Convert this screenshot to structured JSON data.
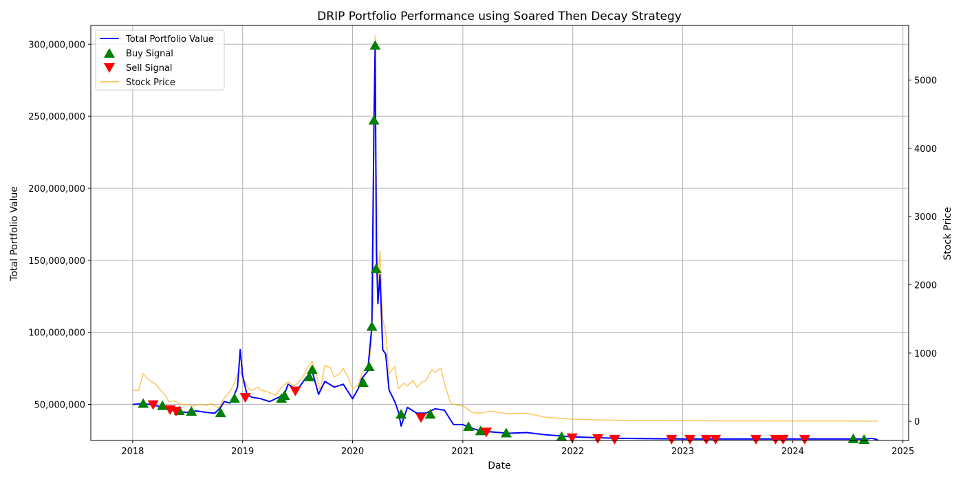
{
  "chart_data": {
    "type": "line",
    "title": "DRIP Portfolio Performance using Soared Then Decay Strategy",
    "xlabel": "Date",
    "ylabel": "Total Portfolio Value",
    "y2label": "Stock Price",
    "xlim": [
      "2017-08-15",
      "2025-01-20"
    ],
    "ylim": [
      25000000,
      313000000
    ],
    "y2lim": [
      -280,
      5800
    ],
    "x_ticks": [
      {
        "date": "2018-01-01",
        "label": "2018"
      },
      {
        "date": "2019-01-01",
        "label": "2019"
      },
      {
        "date": "2020-01-01",
        "label": "2020"
      },
      {
        "date": "2021-01-01",
        "label": "2021"
      },
      {
        "date": "2022-01-01",
        "label": "2022"
      },
      {
        "date": "2023-01-01",
        "label": "2023"
      },
      {
        "date": "2024-01-01",
        "label": "2024"
      },
      {
        "date": "2025-01-01",
        "label": "2025"
      }
    ],
    "y_ticks": [
      {
        "value": 50000000,
        "label": "50,000,000"
      },
      {
        "value": 100000000,
        "label": "100,000,000"
      },
      {
        "value": 150000000,
        "label": "150,000,000"
      },
      {
        "value": 200000000,
        "label": "200,000,000"
      },
      {
        "value": 250000000,
        "label": "250,000,000"
      },
      {
        "value": 300000000,
        "label": "300,000,000"
      }
    ],
    "y2_ticks": [
      {
        "value": 0,
        "label": "0"
      },
      {
        "value": 1000,
        "label": "1000"
      },
      {
        "value": 2000,
        "label": "2000"
      },
      {
        "value": 3000,
        "label": "3000"
      },
      {
        "value": 4000,
        "label": "4000"
      },
      {
        "value": 5000,
        "label": "5000"
      }
    ],
    "grid": true,
    "legend_position": "top-left",
    "series": [
      {
        "name": "Total Portfolio Value",
        "axis": "left",
        "color": "#0000ff",
        "points": [
          [
            "2018-01-01",
            50000000
          ],
          [
            "2018-02-01",
            50500000
          ],
          [
            "2018-03-01",
            50000000
          ],
          [
            "2018-04-01",
            48500000
          ],
          [
            "2018-05-01",
            46500000
          ],
          [
            "2018-06-01",
            45000000
          ],
          [
            "2018-07-01",
            44500000
          ],
          [
            "2018-08-01",
            45500000
          ],
          [
            "2018-09-01",
            44500000
          ],
          [
            "2018-10-01",
            44000000
          ],
          [
            "2018-10-20",
            48000000
          ],
          [
            "2018-11-01",
            52000000
          ],
          [
            "2018-11-20",
            51000000
          ],
          [
            "2018-12-01",
            55000000
          ],
          [
            "2018-12-15",
            62000000
          ],
          [
            "2018-12-24",
            88000000
          ],
          [
            "2019-01-01",
            70000000
          ],
          [
            "2019-01-15",
            57000000
          ],
          [
            "2019-02-01",
            55000000
          ],
          [
            "2019-03-01",
            54000000
          ],
          [
            "2019-04-01",
            52000000
          ],
          [
            "2019-05-01",
            55000000
          ],
          [
            "2019-05-20",
            57000000
          ],
          [
            "2019-06-01",
            64000000
          ],
          [
            "2019-07-01",
            60000000
          ],
          [
            "2019-08-01",
            69000000
          ],
          [
            "2019-08-20",
            73000000
          ],
          [
            "2019-09-10",
            57000000
          ],
          [
            "2019-10-01",
            66000000
          ],
          [
            "2019-11-01",
            62000000
          ],
          [
            "2019-12-01",
            64000000
          ],
          [
            "2020-01-01",
            54000000
          ],
          [
            "2020-01-20",
            61000000
          ],
          [
            "2020-02-01",
            68000000
          ],
          [
            "2020-02-20",
            73000000
          ],
          [
            "2020-03-05",
            104000000
          ],
          [
            "2020-03-12",
            247000000
          ],
          [
            "2020-03-16",
            299000000
          ],
          [
            "2020-03-20",
            157000000
          ],
          [
            "2020-03-25",
            120000000
          ],
          [
            "2020-04-01",
            140000000
          ],
          [
            "2020-04-10",
            88000000
          ],
          [
            "2020-04-20",
            85000000
          ],
          [
            "2020-05-01",
            60000000
          ],
          [
            "2020-05-20",
            52000000
          ],
          [
            "2020-06-01",
            45000000
          ],
          [
            "2020-06-10",
            35000000
          ],
          [
            "2020-07-01",
            48000000
          ],
          [
            "2020-08-01",
            44000000
          ],
          [
            "2020-09-01",
            44000000
          ],
          [
            "2020-10-01",
            47000000
          ],
          [
            "2020-11-01",
            46000000
          ],
          [
            "2020-12-01",
            36000000
          ],
          [
            "2021-01-01",
            36000000
          ],
          [
            "2021-02-01",
            33500000
          ],
          [
            "2021-03-01",
            31500000
          ],
          [
            "2021-04-01",
            31000000
          ],
          [
            "2021-06-01",
            30000000
          ],
          [
            "2021-08-01",
            30500000
          ],
          [
            "2021-10-01",
            29000000
          ],
          [
            "2021-12-01",
            28000000
          ],
          [
            "2022-01-01",
            27500000
          ],
          [
            "2022-06-01",
            26500000
          ],
          [
            "2023-01-01",
            26000000
          ],
          [
            "2023-06-01",
            26000000
          ],
          [
            "2024-01-01",
            26000000
          ],
          [
            "2024-06-01",
            26000000
          ],
          [
            "2024-09-01",
            26000000
          ],
          [
            "2024-09-20",
            26500000
          ],
          [
            "2024-10-10",
            25500000
          ]
        ]
      },
      {
        "name": "Stock Price",
        "axis": "right",
        "color": "#ffa500",
        "points": [
          [
            "2018-01-01",
            460
          ],
          [
            "2018-01-20",
            450
          ],
          [
            "2018-02-05",
            700
          ],
          [
            "2018-02-20",
            620
          ],
          [
            "2018-03-01",
            590
          ],
          [
            "2018-03-20",
            540
          ],
          [
            "2018-04-01",
            470
          ],
          [
            "2018-04-20",
            380
          ],
          [
            "2018-05-01",
            290
          ],
          [
            "2018-05-20",
            300
          ],
          [
            "2018-06-01",
            260
          ],
          [
            "2018-06-20",
            240
          ],
          [
            "2018-07-01",
            250
          ],
          [
            "2018-07-20",
            220
          ],
          [
            "2018-08-01",
            240
          ],
          [
            "2018-08-20",
            250
          ],
          [
            "2018-09-01",
            230
          ],
          [
            "2018-09-20",
            260
          ],
          [
            "2018-10-01",
            220
          ],
          [
            "2018-10-15",
            200
          ],
          [
            "2018-11-01",
            340
          ],
          [
            "2018-11-20",
            440
          ],
          [
            "2018-12-01",
            520
          ],
          [
            "2018-12-20",
            760
          ],
          [
            "2019-01-01",
            650
          ],
          [
            "2019-01-20",
            480
          ],
          [
            "2019-02-01",
            450
          ],
          [
            "2019-02-20",
            500
          ],
          [
            "2019-03-01",
            460
          ],
          [
            "2019-03-20",
            440
          ],
          [
            "2019-04-01",
            420
          ],
          [
            "2019-04-20",
            380
          ],
          [
            "2019-05-01",
            450
          ],
          [
            "2019-05-20",
            540
          ],
          [
            "2019-06-01",
            580
          ],
          [
            "2019-06-20",
            520
          ],
          [
            "2019-07-01",
            550
          ],
          [
            "2019-07-20",
            650
          ],
          [
            "2019-08-01",
            760
          ],
          [
            "2019-08-20",
            880
          ],
          [
            "2019-09-01",
            720
          ],
          [
            "2019-09-15",
            450
          ],
          [
            "2019-10-01",
            820
          ],
          [
            "2019-10-20",
            780
          ],
          [
            "2019-11-01",
            650
          ],
          [
            "2019-11-20",
            700
          ],
          [
            "2019-12-01",
            780
          ],
          [
            "2019-12-20",
            620
          ],
          [
            "2020-01-01",
            480
          ],
          [
            "2020-01-20",
            530
          ],
          [
            "2020-02-01",
            700
          ],
          [
            "2020-02-20",
            820
          ],
          [
            "2020-03-01",
            1000
          ],
          [
            "2020-03-09",
            1700
          ],
          [
            "2020-03-12",
            4500
          ],
          [
            "2020-03-16",
            5650
          ],
          [
            "2020-03-18",
            3200
          ],
          [
            "2020-03-20",
            3600
          ],
          [
            "2020-03-25",
            2000
          ],
          [
            "2020-04-01",
            2500
          ],
          [
            "2020-04-10",
            1500
          ],
          [
            "2020-04-20",
            1300
          ],
          [
            "2020-05-01",
            700
          ],
          [
            "2020-05-20",
            800
          ],
          [
            "2020-06-01",
            480
          ],
          [
            "2020-06-20",
            560
          ],
          [
            "2020-07-01",
            520
          ],
          [
            "2020-07-20",
            600
          ],
          [
            "2020-08-01",
            500
          ],
          [
            "2020-08-20",
            580
          ],
          [
            "2020-09-01",
            600
          ],
          [
            "2020-09-20",
            760
          ],
          [
            "2020-10-01",
            720
          ],
          [
            "2020-10-20",
            780
          ],
          [
            "2020-11-01",
            560
          ],
          [
            "2020-11-20",
            280
          ],
          [
            "2020-12-01",
            250
          ],
          [
            "2020-12-20",
            230
          ],
          [
            "2021-01-01",
            230
          ],
          [
            "2021-02-01",
            130
          ],
          [
            "2021-03-01",
            120
          ],
          [
            "2021-04-01",
            150
          ],
          [
            "2021-06-01",
            110
          ],
          [
            "2021-08-01",
            120
          ],
          [
            "2021-10-01",
            60
          ],
          [
            "2021-12-01",
            40
          ],
          [
            "2022-01-01",
            30
          ],
          [
            "2022-06-01",
            15
          ],
          [
            "2023-01-01",
            10
          ],
          [
            "2023-06-01",
            8
          ],
          [
            "2024-01-01",
            5
          ],
          [
            "2024-06-01",
            5
          ],
          [
            "2024-10-10",
            4
          ]
        ]
      }
    ],
    "buy_signals": {
      "name": "Buy Signal",
      "color": "#008000",
      "points": [
        [
          "2018-02-05",
          50500000
        ],
        [
          "2018-04-10",
          49000000
        ],
        [
          "2018-06-05",
          45500000
        ],
        [
          "2018-07-15",
          45000000
        ],
        [
          "2018-10-20",
          44000000
        ],
        [
          "2018-12-05",
          54000000
        ],
        [
          "2019-05-10",
          54000000
        ],
        [
          "2019-05-20",
          56000000
        ],
        [
          "2019-08-10",
          69000000
        ],
        [
          "2019-08-20",
          74000000
        ],
        [
          "2020-02-05",
          65000000
        ],
        [
          "2020-02-25",
          76000000
        ],
        [
          "2020-03-05",
          104000000
        ],
        [
          "2020-03-12",
          247000000
        ],
        [
          "2020-03-16",
          299000000
        ],
        [
          "2020-03-19",
          144000000
        ],
        [
          "2020-06-10",
          43000000
        ],
        [
          "2020-09-15",
          43000000
        ],
        [
          "2021-01-20",
          34500000
        ],
        [
          "2021-03-01",
          31500000
        ],
        [
          "2021-05-25",
          30000000
        ],
        [
          "2021-11-25",
          27500000
        ],
        [
          "2024-07-20",
          26000000
        ],
        [
          "2024-08-25",
          25500000
        ]
      ]
    },
    "sell_signals": {
      "name": "Sell Signal",
      "color": "#ff0000",
      "points": [
        [
          "2018-03-10",
          50000000
        ],
        [
          "2018-05-05",
          46500000
        ],
        [
          "2018-05-25",
          45500000
        ],
        [
          "2019-01-10",
          55000000
        ],
        [
          "2019-06-25",
          59500000
        ],
        [
          "2020-08-15",
          41000000
        ],
        [
          "2021-03-20",
          31000000
        ],
        [
          "2021-12-30",
          27000000
        ],
        [
          "2022-03-25",
          26500000
        ],
        [
          "2022-05-20",
          26000000
        ],
        [
          "2022-11-25",
          26000000
        ],
        [
          "2023-01-25",
          26000000
        ],
        [
          "2023-03-20",
          26000000
        ],
        [
          "2023-04-20",
          26000000
        ],
        [
          "2023-09-01",
          26000000
        ],
        [
          "2023-11-05",
          26000000
        ],
        [
          "2023-11-30",
          26000000
        ],
        [
          "2024-02-10",
          26000000
        ]
      ]
    }
  }
}
